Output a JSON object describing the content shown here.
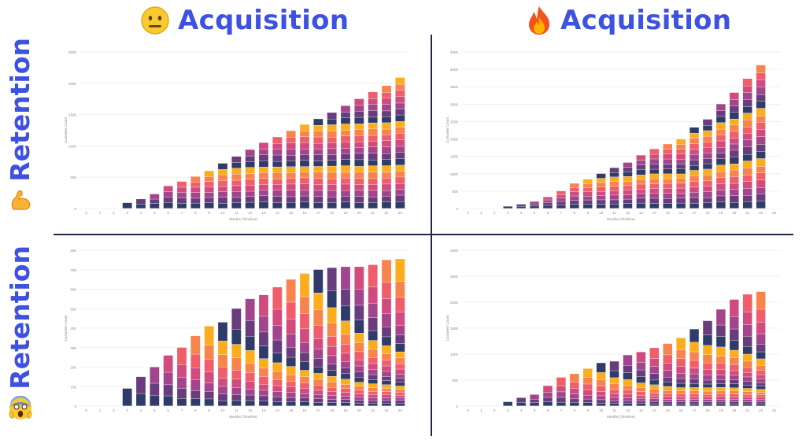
{
  "header": {
    "acquisition_left": "Acquisition",
    "acquisition_right": "Acquisition",
    "retention_top": "Retention",
    "retention_bottom": "Retention"
  },
  "icons": {
    "acquisition_left": "neutral-face-icon",
    "acquisition_right": "fire-icon",
    "retention_top": "flexed-biceps-icon",
    "retention_bottom": "screaming-face-icon"
  },
  "colors": {
    "title": "#3d52e0",
    "divider": "#1c2a44",
    "palette": [
      "#2f3b68",
      "#693c7d",
      "#a3458c",
      "#d24b7e",
      "#ef5e6a",
      "#f7844c",
      "#fbad1e"
    ]
  },
  "chart_data": [
    {
      "id": "top-left",
      "type": "bar",
      "stacked": true,
      "xlabel": "Months (Timeline)",
      "ylabel": "Customer Count",
      "x": [
        0,
        1,
        2,
        3,
        4,
        5,
        6,
        7,
        8,
        9,
        10,
        11,
        12,
        13,
        14,
        15,
        16,
        17,
        18,
        19,
        20,
        21,
        22,
        23
      ],
      "totals": [
        0,
        0,
        0,
        90,
        150,
        230,
        360,
        430,
        510,
        600,
        720,
        830,
        940,
        1050,
        1140,
        1240,
        1340,
        1430,
        1530,
        1640,
        1750,
        1860,
        1960,
        2090
      ],
      "ylim": [
        0,
        2500
      ],
      "yticks": [
        0,
        500,
        1000,
        1500,
        2000,
        2500
      ],
      "retention_profile": "steady"
    },
    {
      "id": "top-right",
      "type": "bar",
      "stacked": true,
      "xlabel": "Months (Timeline)",
      "ylabel": "Customer Count",
      "x": [
        0,
        1,
        2,
        3,
        4,
        5,
        6,
        7,
        8,
        9,
        10,
        11,
        12,
        13,
        14,
        15,
        16,
        17,
        18,
        19,
        20,
        21,
        22,
        23
      ],
      "totals": [
        0,
        0,
        0,
        60,
        120,
        200,
        330,
        500,
        720,
        840,
        1000,
        1170,
        1320,
        1530,
        1710,
        1850,
        1990,
        2330,
        2560,
        3000,
        3330,
        3730,
        4120,
        0
      ],
      "ylim": [
        0,
        4500
      ],
      "yticks": [
        0,
        500,
        1000,
        1500,
        2000,
        2500,
        3000,
        3500,
        4000,
        4500
      ],
      "retention_profile": "steady"
    },
    {
      "id": "bottom-left",
      "type": "bar",
      "stacked": true,
      "xlabel": "Months (Timeline)",
      "ylabel": "Customer Count",
      "x": [
        0,
        1,
        2,
        3,
        4,
        5,
        6,
        7,
        8,
        9,
        10,
        11,
        12,
        13,
        14,
        15,
        16,
        17,
        18,
        19,
        20,
        21,
        22,
        23
      ],
      "totals": [
        0,
        0,
        0,
        90,
        150,
        200,
        260,
        300,
        360,
        410,
        430,
        500,
        550,
        570,
        610,
        650,
        680,
        700,
        710,
        715,
        715,
        725,
        750,
        755
      ],
      "ylim": [
        0,
        800
      ],
      "yticks": [
        0,
        100,
        200,
        300,
        400,
        500,
        600,
        700,
        800
      ],
      "retention_profile": "decaying"
    },
    {
      "id": "bottom-right",
      "type": "bar",
      "stacked": true,
      "xlabel": "Months (Timeline)",
      "ylabel": "Customer Count",
      "x": [
        0,
        1,
        2,
        3,
        4,
        5,
        6,
        7,
        8,
        9,
        10,
        11,
        12,
        13,
        14,
        15,
        16,
        17,
        18,
        19,
        20,
        21,
        22,
        23
      ],
      "totals": [
        0,
        0,
        0,
        80,
        160,
        220,
        390,
        550,
        620,
        720,
        830,
        860,
        980,
        1040,
        1120,
        1200,
        1310,
        1480,
        1640,
        1860,
        2050,
        2150,
        2200,
        0
      ],
      "ylim": [
        0,
        3000
      ],
      "yticks": [
        0,
        500,
        1000,
        1500,
        2000,
        2500,
        3000
      ],
      "retention_profile": "decaying"
    }
  ]
}
